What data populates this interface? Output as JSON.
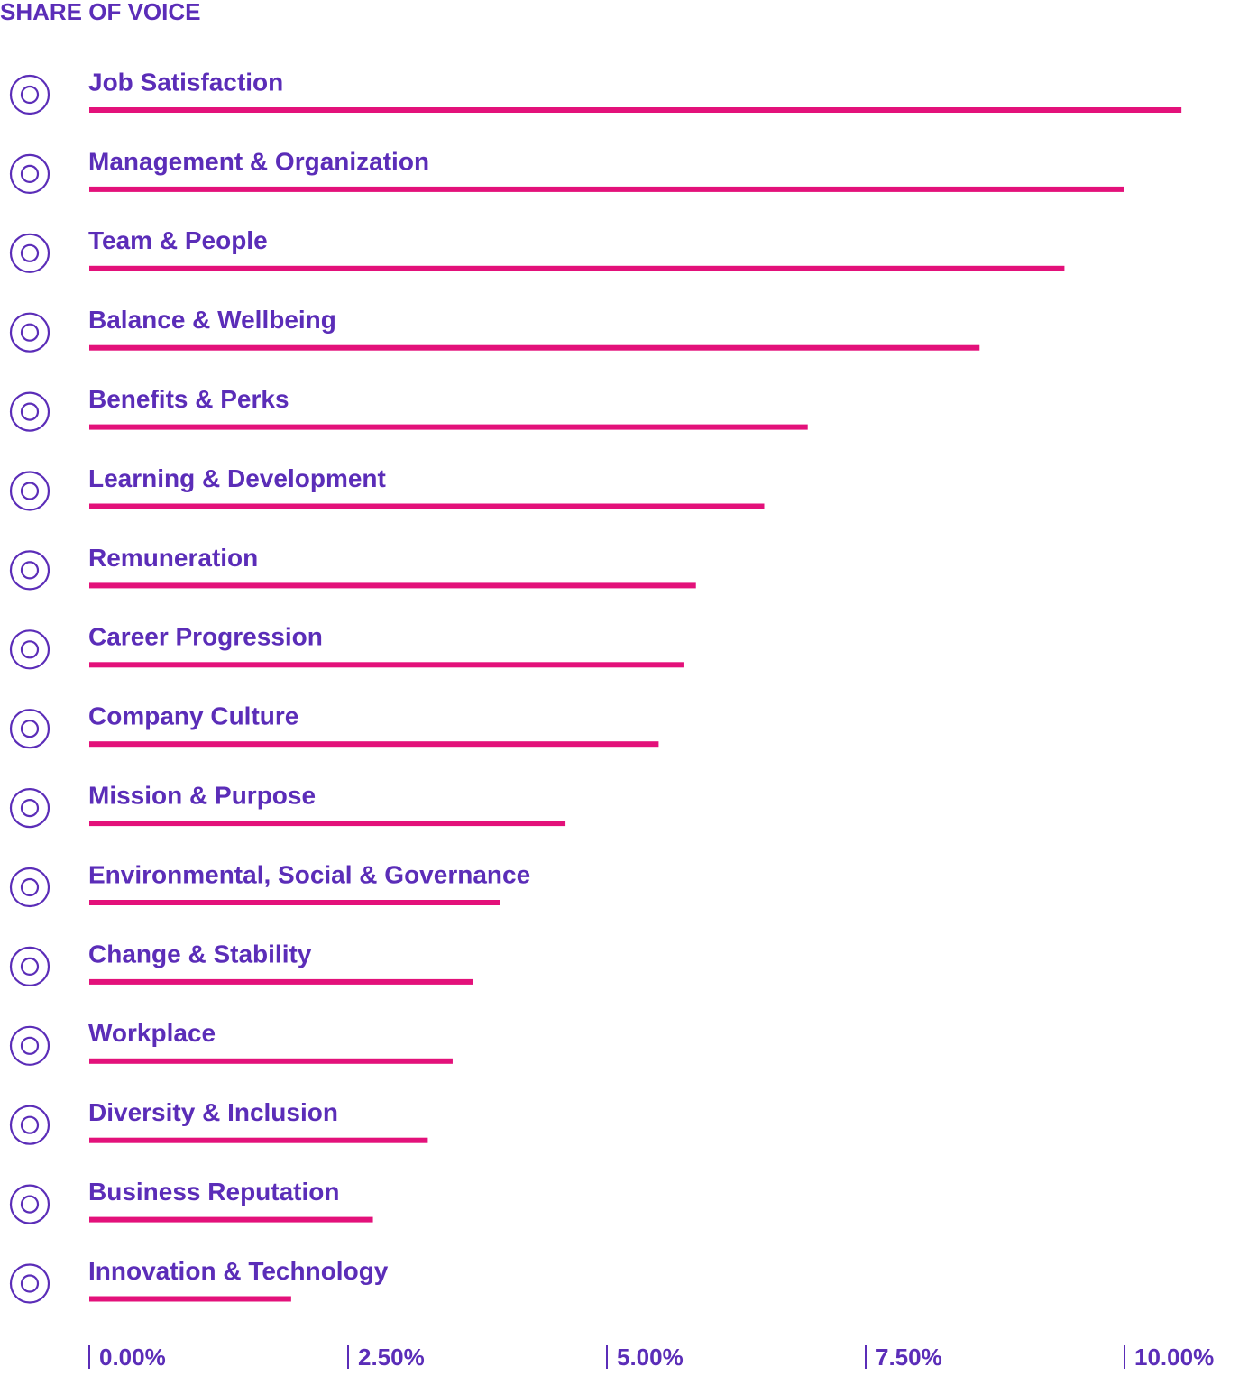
{
  "chart_data": {
    "type": "bar",
    "orientation": "horizontal",
    "title": "SHARE OF VOICE",
    "categories": [
      "Job Satisfaction",
      "Management & Organization",
      "Team & People",
      "Balance & Wellbeing",
      "Benefits & Perks",
      "Learning & Development",
      "Remuneration",
      "Career Progression",
      "Company Culture",
      "Mission & Purpose",
      "Environmental, Social & Governance",
      "Change & Stability",
      "Workplace",
      "Diversity & Inclusion",
      "Business Reputation",
      "Innovation & Technology"
    ],
    "values": [
      10.55,
      10.0,
      9.42,
      8.6,
      6.94,
      6.52,
      5.86,
      5.74,
      5.5,
      4.6,
      3.97,
      3.71,
      3.51,
      3.27,
      2.74,
      1.95
    ],
    "color": "#e3117a",
    "xlim": [
      0,
      11
    ],
    "xticks": [
      {
        "value": 0,
        "label": "0.00%"
      },
      {
        "value": 2.5,
        "label": "2.50%"
      },
      {
        "value": 5,
        "label": "5.00%"
      },
      {
        "value": 7.5,
        "label": "7.50%"
      },
      {
        "value": 10,
        "label": "10.00%"
      }
    ]
  }
}
